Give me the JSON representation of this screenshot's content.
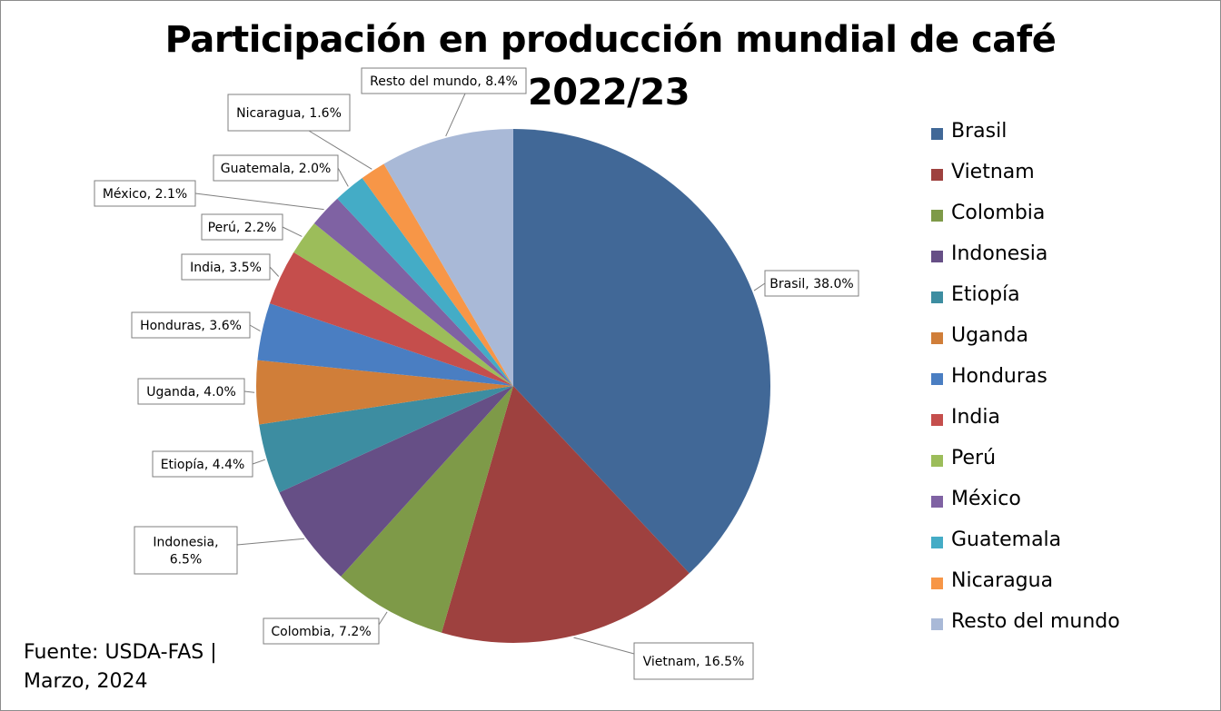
{
  "chart_data": {
    "type": "pie",
    "title_line1": "Participación en producción mundial de café",
    "title_line2": "2022/23",
    "slices": [
      {
        "name": "Brasil",
        "value": 38.0,
        "label": "Brasil, 38.0%",
        "color": "#416897"
      },
      {
        "name": "Vietnam",
        "value": 16.5,
        "label": "Vietnam, 16.5%",
        "color": "#9E413F"
      },
      {
        "name": "Colombia",
        "value": 7.2,
        "label": "Colombia, 7.2%",
        "color": "#7E9A48"
      },
      {
        "name": "Indonesia",
        "value": 6.5,
        "label_lines": [
          "Indonesia,",
          "6.5%"
        ],
        "color": "#664F86"
      },
      {
        "name": "Etiopía",
        "value": 4.4,
        "label": "Etiopía, 4.4%",
        "color": "#3D8DA1"
      },
      {
        "name": "Uganda",
        "value": 4.0,
        "label": "Uganda, 4.0%",
        "color": "#D07E39"
      },
      {
        "name": "Honduras",
        "value": 3.6,
        "label": "Honduras, 3.6%",
        "color": "#4A7EC2"
      },
      {
        "name": "India",
        "value": 3.5,
        "label": "India, 3.5%",
        "color": "#C54E4C"
      },
      {
        "name": "Perú",
        "value": 2.2,
        "label": "Perú, 2.2%",
        "color": "#9CBD5A"
      },
      {
        "name": "México",
        "value": 2.1,
        "label": "México, 2.1%",
        "color": "#7F62A3"
      },
      {
        "name": "Guatemala",
        "value": 2.0,
        "label": "Guatemala, 2.0%",
        "color": "#44ACC6"
      },
      {
        "name": "Nicaragua",
        "value": 1.6,
        "label": "Nicaragua, 1.6%",
        "color": "#F79647"
      },
      {
        "name": "Resto del mundo",
        "value": 8.4,
        "label": "Resto del mundo, 8.4%",
        "color": "#A9B9D7"
      }
    ],
    "legend_position": "right"
  },
  "legend": [
    {
      "label": "Brasil",
      "color": "#416897"
    },
    {
      "label": "Vietnam",
      "color": "#9E413F"
    },
    {
      "label": "Colombia",
      "color": "#7E9A48"
    },
    {
      "label": "Indonesia",
      "color": "#664F86"
    },
    {
      "label": "Etiopía",
      "color": "#3D8DA1"
    },
    {
      "label": "Uganda",
      "color": "#D07E39"
    },
    {
      "label": "Honduras",
      "color": "#4A7EC2"
    },
    {
      "label": "India",
      "color": "#C54E4C"
    },
    {
      "label": "Perú",
      "color": "#9CBD5A"
    },
    {
      "label": "México",
      "color": "#7F62A3"
    },
    {
      "label": "Guatemala",
      "color": "#44ACC6"
    },
    {
      "label": "Nicaragua",
      "color": "#F79647"
    },
    {
      "label": "Resto del mundo",
      "color": "#A9B9D7"
    }
  ],
  "source": {
    "line1": "Fuente: USDA-FAS |",
    "line2": "Marzo, 2024"
  }
}
